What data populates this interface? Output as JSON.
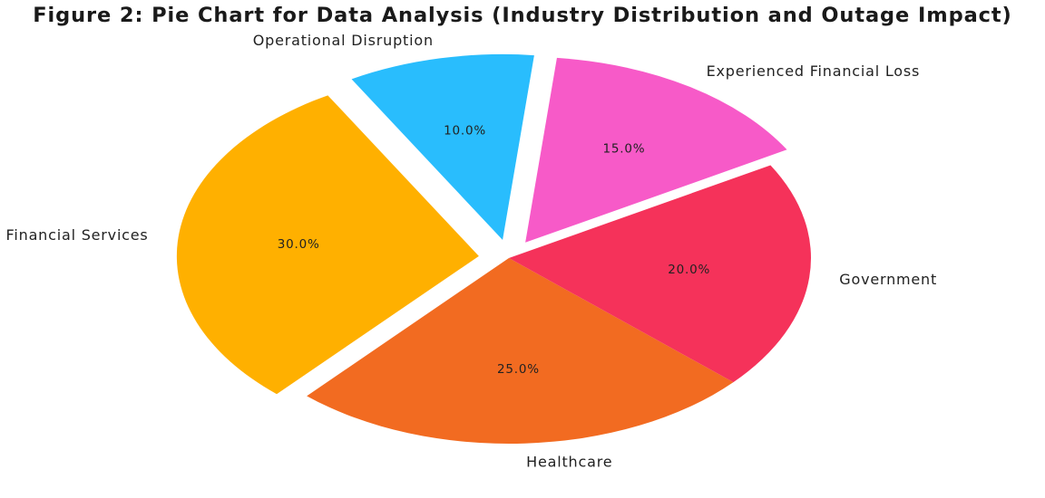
{
  "chart_data": {
    "type": "pie",
    "title": "Figure 2: Pie Chart for Data Analysis (Industry Distribution and Outage Impact)",
    "labels": [
      "Financial Services",
      "Healthcare",
      "Government",
      "Experienced Financial Loss",
      "Operational Disruption"
    ],
    "values": [
      30,
      25,
      20,
      15,
      10
    ],
    "percent_labels": [
      "30.0%",
      "25.0%",
      "20.0%",
      "15.0%",
      "10.0%"
    ],
    "colors": [
      "#ffb000",
      "#f26b21",
      "#f5325a",
      "#f75ac8",
      "#29bdfd"
    ],
    "exploded": [
      true,
      false,
      false,
      true,
      true
    ],
    "start_angle_deg": 120,
    "direction": "counterclockwise",
    "legend": "none"
  }
}
